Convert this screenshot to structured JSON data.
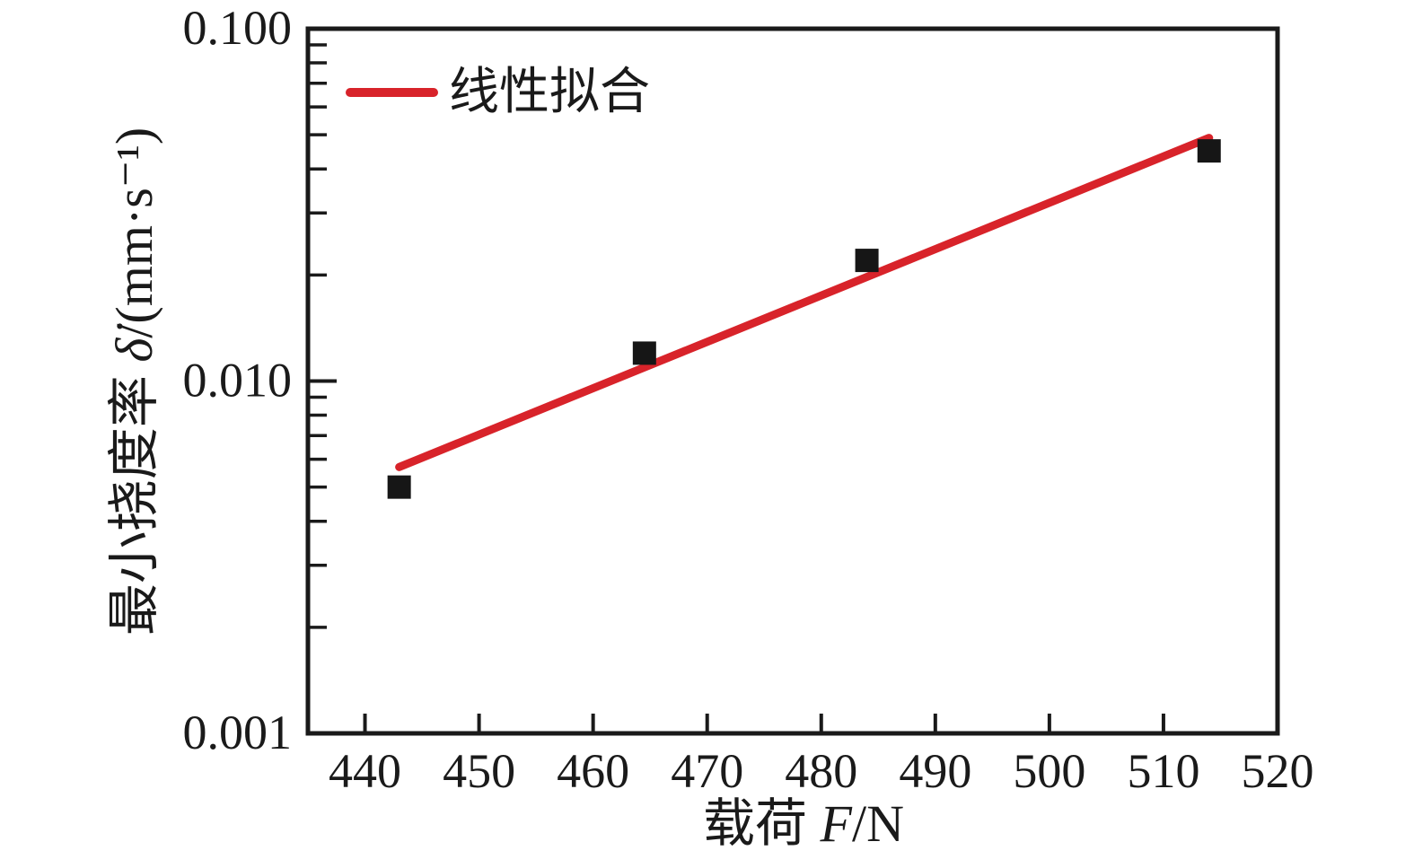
{
  "chart_data": {
    "type": "scatter",
    "title": "",
    "xlabel": "载荷 F/N",
    "ylabel": "最小挠度率 δ̇/(mm·s⁻¹)",
    "xlabel_parts": {
      "prefix": "载荷 ",
      "symbol": "F",
      "suffix": "/N"
    },
    "ylabel_parts": {
      "prefix": "最小挠度率 ",
      "symbol": "δ̇",
      "suffix": "/(mm·s⁻¹)"
    },
    "xlim": [
      435,
      520
    ],
    "ylim": [
      0.001,
      0.1
    ],
    "y_scale": "log",
    "grid": false,
    "x_ticks": [
      440,
      450,
      460,
      470,
      480,
      490,
      500,
      510,
      520
    ],
    "y_ticks": [
      0.1,
      0.01,
      0.001
    ],
    "y_tick_labels": [
      "0.100",
      "0.010",
      "0.001"
    ],
    "legend": [
      {
        "label": "线性拟合",
        "color": "#d8232a",
        "style": "line"
      }
    ],
    "legend_position": "upper-left-inside",
    "scatter": {
      "marker": "square",
      "color": "#161616",
      "points": [
        [
          443,
          0.005
        ],
        [
          464.5,
          0.012
        ],
        [
          484,
          0.022
        ],
        [
          514,
          0.045
        ]
      ]
    },
    "fit_line": {
      "label": "线性拟合",
      "color": "#d8232a",
      "points": [
        [
          443,
          0.0057
        ],
        [
          514,
          0.049
        ]
      ]
    },
    "colors": {
      "axis": "#1a1a1a",
      "text": "#1a1a1a"
    }
  }
}
